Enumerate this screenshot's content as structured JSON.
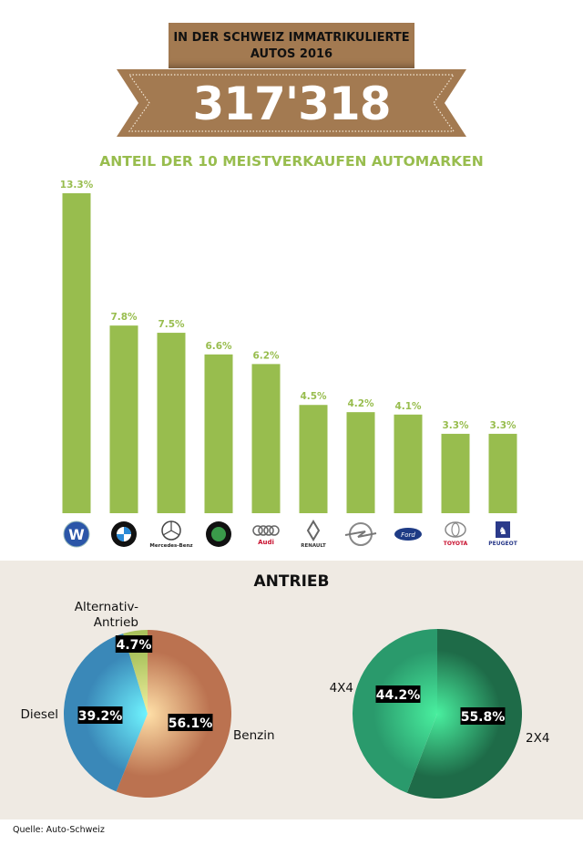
{
  "header": {
    "banner_line1": "IN DER SCHWEIZ IMMATRIKULIERTE",
    "banner_line2": "AUTOS 2016",
    "total": "317'318",
    "colors": {
      "banner": "#a37a51"
    }
  },
  "chart_data": [
    {
      "type": "bar",
      "title": "ANTEIL DER 10 MEISTVERKAUFEN AUTOMARKEN",
      "categories": [
        "Volkswagen",
        "BMW",
        "Mercedes-Benz",
        "Skoda",
        "Audi",
        "Renault",
        "Opel",
        "Ford",
        "Toyota",
        "Peugeot"
      ],
      "values": [
        13.3,
        7.8,
        7.5,
        6.6,
        6.2,
        4.5,
        4.2,
        4.1,
        3.3,
        3.3
      ],
      "labels": [
        "13.3%",
        "7.8%",
        "7.5%",
        "6.6%",
        "6.2%",
        "4.5%",
        "4.2%",
        "4.1%",
        "3.3%",
        "3.3%"
      ],
      "unit": "%",
      "ylim": [
        0,
        13.3
      ],
      "grid": false,
      "color": "#98bd4e",
      "category_display": "brand logos"
    },
    {
      "type": "pie",
      "title": "ANTRIEB",
      "slices": [
        {
          "name": "Benzin",
          "value": 56.1,
          "label": "56.1%",
          "color": "#bb7250"
        },
        {
          "name": "Diesel",
          "value": 39.2,
          "label": "39.2%",
          "color": "#3a88b8"
        },
        {
          "name": "Alternativ-Antrieb",
          "name_lines": [
            "Alternativ-",
            "Antrieb"
          ],
          "value": 4.7,
          "label": "4.7%",
          "color": "#a9c25c"
        }
      ]
    },
    {
      "type": "pie",
      "slices": [
        {
          "name": "2X4",
          "value": 55.8,
          "label": "55.8%",
          "color": "#1e6b48"
        },
        {
          "name": "4X4",
          "value": 44.2,
          "label": "44.2%",
          "color": "#2a9a6c"
        }
      ]
    }
  ],
  "logos": [
    {
      "brand": "Volkswagen",
      "text": ""
    },
    {
      "brand": "BMW",
      "text": "BMW"
    },
    {
      "brand": "Mercedes-Benz",
      "text": "Mercedes-Benz"
    },
    {
      "brand": "Skoda",
      "text": ""
    },
    {
      "brand": "Audi",
      "text": "Audi"
    },
    {
      "brand": "Renault",
      "text": "RENAULT"
    },
    {
      "brand": "Opel",
      "text": ""
    },
    {
      "brand": "Ford",
      "text": "Ford"
    },
    {
      "brand": "Toyota",
      "text": "TOYOTA"
    },
    {
      "brand": "Peugeot",
      "text": "PEUGEOT"
    }
  ],
  "footer": {
    "source": "Quelle: Auto-Schweiz"
  }
}
